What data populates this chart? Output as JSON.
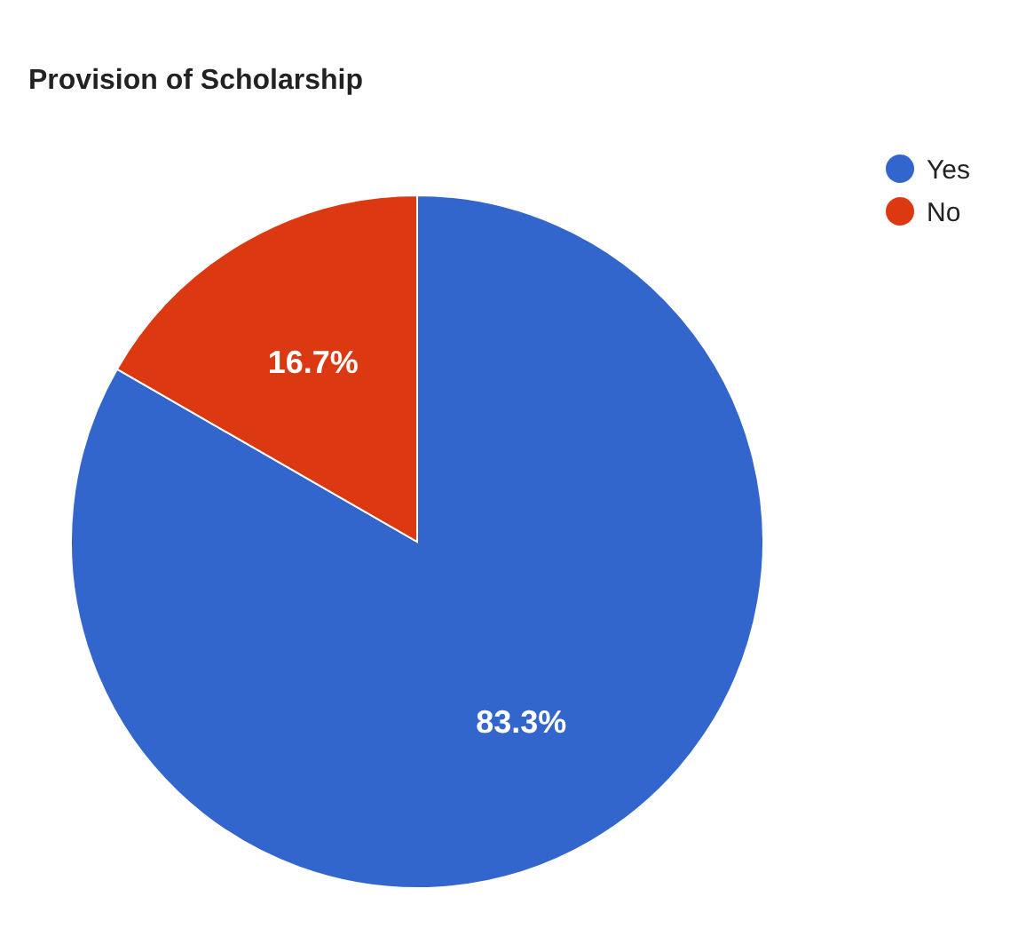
{
  "chart_data": {
    "type": "pie",
    "title": "Provision of Scholarship",
    "categories": [
      "Yes",
      "No"
    ],
    "values": [
      83.3,
      16.7
    ],
    "colors": [
      "#3366cc",
      "#dc3912"
    ],
    "value_labels": [
      "83.3%",
      "16.7%"
    ],
    "legend": "top right"
  }
}
